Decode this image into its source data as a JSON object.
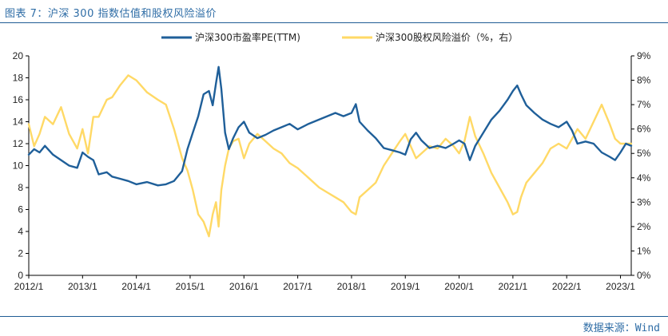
{
  "header": {
    "title": "图表 7：沪深 300 指数估值和股权风险溢价"
  },
  "footer": {
    "source": "数据来源：Wind"
  },
  "chart_data": {
    "type": "line",
    "title": "图表 7：沪深 300 指数估值和股权风险溢价",
    "x_tick_labels": [
      "2012/1",
      "2013/1",
      "2014/1",
      "2015/1",
      "2016/1",
      "2017/1",
      "2018/1",
      "2019/1",
      "2020/1",
      "2021/1",
      "2022/1",
      "2023/1"
    ],
    "x_range": [
      2012.0,
      2023.2
    ],
    "y_left": {
      "range": [
        0,
        20
      ],
      "ticks": [
        0,
        2,
        4,
        6,
        8,
        10,
        12,
        14,
        16,
        18,
        20
      ]
    },
    "y_right": {
      "range": [
        0,
        9
      ],
      "ticks": [
        "0%",
        "1%",
        "2%",
        "3%",
        "4%",
        "5%",
        "6%",
        "7%",
        "8%",
        "9%"
      ],
      "unit": "%"
    },
    "legend_position": "top-center",
    "series": [
      {
        "name": "沪深300市盈率PE(TTM)",
        "axis": "left",
        "color": "#1f5f99",
        "x": [
          2012.0,
          2012.1,
          2012.2,
          2012.3,
          2012.45,
          2012.6,
          2012.75,
          2012.9,
          2013.0,
          2013.1,
          2013.2,
          2013.3,
          2013.45,
          2013.55,
          2013.7,
          2013.85,
          2014.0,
          2014.2,
          2014.4,
          2014.55,
          2014.7,
          2014.85,
          2014.95,
          2015.05,
          2015.15,
          2015.25,
          2015.35,
          2015.42,
          2015.48,
          2015.53,
          2015.58,
          2015.65,
          2015.72,
          2015.8,
          2015.9,
          2016.0,
          2016.1,
          2016.25,
          2016.4,
          2016.55,
          2016.7,
          2016.85,
          2017.0,
          2017.2,
          2017.4,
          2017.55,
          2017.7,
          2017.85,
          2018.0,
          2018.08,
          2018.15,
          2018.3,
          2018.45,
          2018.6,
          2018.75,
          2018.9,
          2019.0,
          2019.1,
          2019.2,
          2019.3,
          2019.45,
          2019.6,
          2019.75,
          2019.9,
          2020.0,
          2020.1,
          2020.2,
          2020.3,
          2020.45,
          2020.6,
          2020.75,
          2020.9,
          2021.0,
          2021.08,
          2021.15,
          2021.25,
          2021.4,
          2021.55,
          2021.7,
          2021.85,
          2022.0,
          2022.1,
          2022.2,
          2022.35,
          2022.5,
          2022.65,
          2022.8,
          2022.9,
          2023.0,
          2023.1,
          2023.2
        ],
        "values": [
          11.0,
          11.5,
          11.2,
          11.8,
          11.0,
          10.5,
          10.0,
          9.8,
          11.2,
          10.8,
          10.5,
          9.2,
          9.4,
          9.0,
          8.8,
          8.6,
          8.3,
          8.5,
          8.2,
          8.3,
          8.6,
          9.5,
          11.5,
          13.0,
          14.5,
          16.5,
          16.8,
          15.5,
          17.5,
          19.0,
          17.0,
          13.0,
          11.5,
          12.5,
          13.5,
          14.0,
          13.0,
          12.5,
          12.8,
          13.2,
          13.5,
          13.8,
          13.3,
          13.8,
          14.2,
          14.5,
          14.8,
          14.5,
          14.8,
          15.6,
          14.0,
          13.2,
          12.5,
          11.6,
          11.4,
          11.2,
          11.0,
          12.4,
          13.0,
          12.3,
          11.6,
          11.8,
          11.6,
          12.0,
          12.3,
          12.0,
          10.5,
          11.8,
          13.0,
          14.2,
          15.0,
          16.0,
          16.8,
          17.3,
          16.5,
          15.5,
          14.8,
          14.2,
          13.8,
          13.5,
          14.0,
          13.2,
          12.0,
          12.2,
          12.0,
          11.2,
          10.8,
          10.5,
          11.2,
          12.0,
          11.8
        ]
      },
      {
        "name": "沪深300股权风险溢价（%，右）",
        "axis": "right",
        "color": "#ffd966",
        "x": [
          2012.0,
          2012.1,
          2012.2,
          2012.3,
          2012.45,
          2012.6,
          2012.75,
          2012.9,
          2013.0,
          2013.1,
          2013.2,
          2013.3,
          2013.45,
          2013.55,
          2013.7,
          2013.85,
          2014.0,
          2014.2,
          2014.4,
          2014.55,
          2014.7,
          2014.85,
          2014.95,
          2015.05,
          2015.15,
          2015.25,
          2015.35,
          2015.42,
          2015.48,
          2015.53,
          2015.58,
          2015.65,
          2015.72,
          2015.8,
          2015.9,
          2016.0,
          2016.1,
          2016.25,
          2016.4,
          2016.55,
          2016.7,
          2016.85,
          2017.0,
          2017.2,
          2017.4,
          2017.55,
          2017.7,
          2017.85,
          2018.0,
          2018.08,
          2018.15,
          2018.3,
          2018.45,
          2018.6,
          2018.75,
          2018.9,
          2019.0,
          2019.1,
          2019.2,
          2019.3,
          2019.45,
          2019.6,
          2019.75,
          2019.9,
          2020.0,
          2020.1,
          2020.2,
          2020.3,
          2020.45,
          2020.6,
          2020.75,
          2020.9,
          2021.0,
          2021.08,
          2021.15,
          2021.25,
          2021.4,
          2021.55,
          2021.7,
          2021.85,
          2022.0,
          2022.1,
          2022.2,
          2022.35,
          2022.5,
          2022.65,
          2022.8,
          2022.9,
          2023.0,
          2023.1,
          2023.2
        ],
        "values": [
          6.2,
          5.3,
          5.8,
          6.5,
          6.2,
          6.9,
          5.8,
          5.2,
          6.0,
          5.0,
          6.5,
          6.5,
          7.2,
          7.3,
          7.8,
          8.2,
          8.0,
          7.5,
          7.2,
          7.0,
          6.0,
          4.8,
          4.3,
          3.5,
          2.5,
          2.2,
          1.6,
          2.5,
          3.0,
          2.0,
          3.5,
          4.5,
          5.2,
          5.5,
          5.6,
          4.8,
          5.4,
          5.8,
          5.5,
          5.2,
          5.0,
          4.6,
          4.4,
          4.0,
          3.6,
          3.4,
          3.2,
          3.0,
          2.6,
          2.5,
          3.2,
          3.5,
          3.8,
          4.5,
          5.0,
          5.5,
          5.8,
          5.3,
          4.8,
          5.0,
          5.3,
          5.2,
          5.6,
          5.3,
          5.0,
          5.5,
          6.5,
          5.7,
          5.0,
          4.2,
          3.6,
          3.0,
          2.5,
          2.6,
          3.2,
          3.8,
          4.2,
          4.6,
          5.2,
          5.4,
          5.2,
          5.6,
          6.0,
          5.6,
          6.3,
          7.0,
          6.2,
          5.6,
          5.4,
          5.4,
          5.4
        ]
      }
    ]
  }
}
